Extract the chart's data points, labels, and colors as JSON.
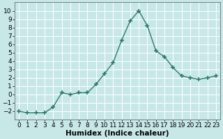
{
  "x": [
    0,
    1,
    2,
    3,
    4,
    5,
    6,
    7,
    8,
    9,
    10,
    11,
    12,
    13,
    14,
    15,
    16,
    17,
    18,
    19,
    20,
    21,
    22,
    23
  ],
  "y": [
    -2,
    -2.2,
    -2.2,
    -2.2,
    -1.5,
    0.2,
    0.0,
    0.2,
    0.2,
    1.2,
    2.5,
    3.8,
    6.5,
    8.8,
    10.0,
    8.2,
    5.2,
    4.5,
    3.2,
    2.2,
    2.0,
    1.8,
    2.0,
    2.2
  ],
  "line_color": "#2d7a6e",
  "marker": "+",
  "marker_size": 4,
  "marker_lw": 1.2,
  "background_color": "#c8e8e8",
  "grid_color": "#ffffff",
  "xlabel": "Humidex (Indice chaleur)",
  "xlim": [
    -0.5,
    23.5
  ],
  "ylim": [
    -3,
    11
  ],
  "yticks": [
    -2,
    -1,
    0,
    1,
    2,
    3,
    4,
    5,
    6,
    7,
    8,
    9,
    10
  ],
  "xticks": [
    0,
    1,
    2,
    3,
    4,
    5,
    6,
    7,
    8,
    9,
    10,
    11,
    12,
    13,
    14,
    15,
    16,
    17,
    18,
    19,
    20,
    21,
    22,
    23
  ],
  "tick_fontsize": 6.5,
  "label_fontsize": 7.5,
  "line_width": 1.0
}
